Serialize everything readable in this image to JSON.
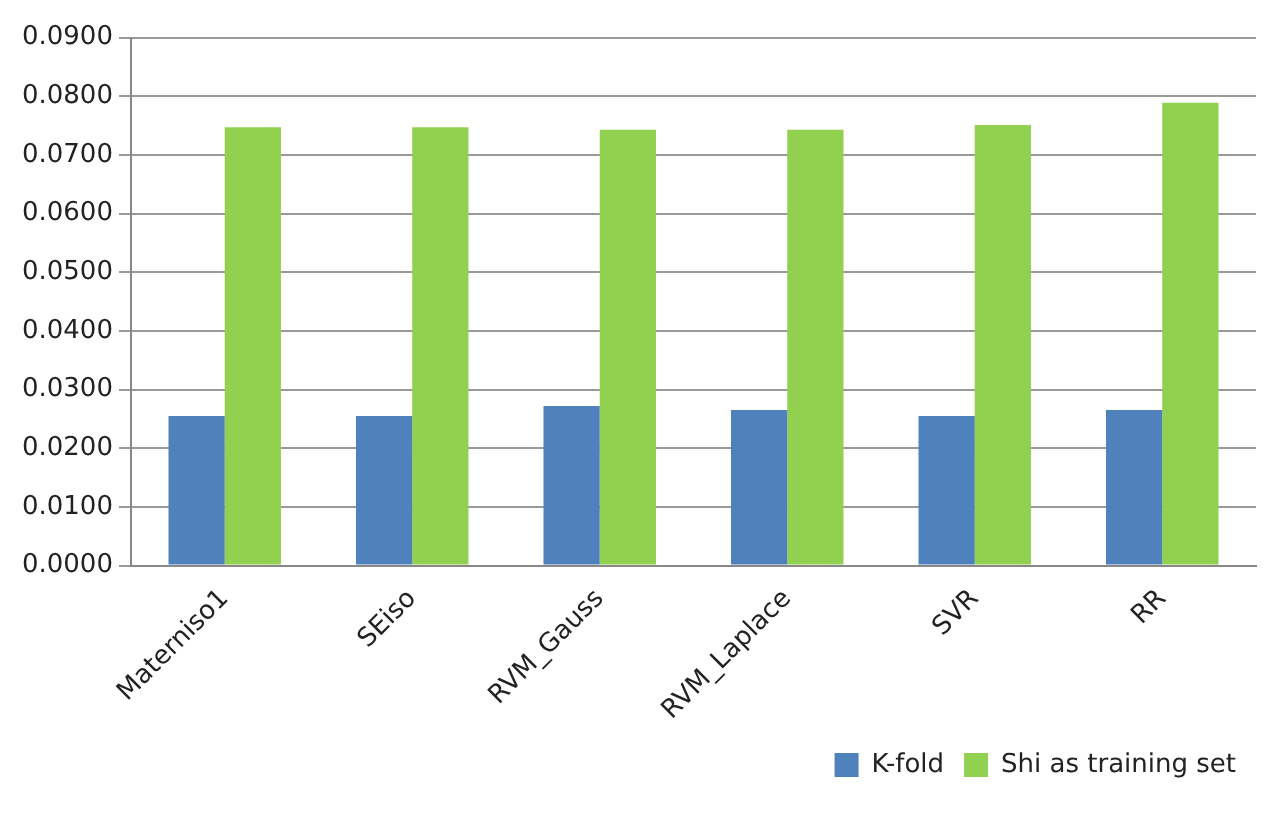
{
  "chart_data": {
    "type": "bar",
    "categories": [
      "Materniso1",
      "SEiso",
      "RVM_Gauss",
      "RVM_Laplace",
      "SVR",
      "RR"
    ],
    "series": [
      {
        "name": "K-fold",
        "color": "#4f81bd",
        "values": [
          0.0255,
          0.0255,
          0.0272,
          0.0265,
          0.0255,
          0.0265
        ]
      },
      {
        "name": "Shi as training set",
        "color": "#92d050",
        "values": [
          0.0747,
          0.0747,
          0.0743,
          0.0743,
          0.0751,
          0.0789
        ]
      }
    ],
    "ylim": [
      0,
      0.09
    ],
    "yticks": [
      {
        "value": 0,
        "label": "0.0000"
      },
      {
        "value": 0.01,
        "label": "0.0100"
      },
      {
        "value": 0.02,
        "label": "0.0200"
      },
      {
        "value": 0.03,
        "label": "0.0300"
      },
      {
        "value": 0.04,
        "label": "0.0400"
      },
      {
        "value": 0.05,
        "label": "0.0500"
      },
      {
        "value": 0.06,
        "label": "0.0600"
      },
      {
        "value": 0.07,
        "label": "0.0700"
      },
      {
        "value": 0.08,
        "label": "0.0800"
      },
      {
        "value": 0.09,
        "label": "0.0900"
      }
    ],
    "grid": "y",
    "legend": "bottom right"
  }
}
